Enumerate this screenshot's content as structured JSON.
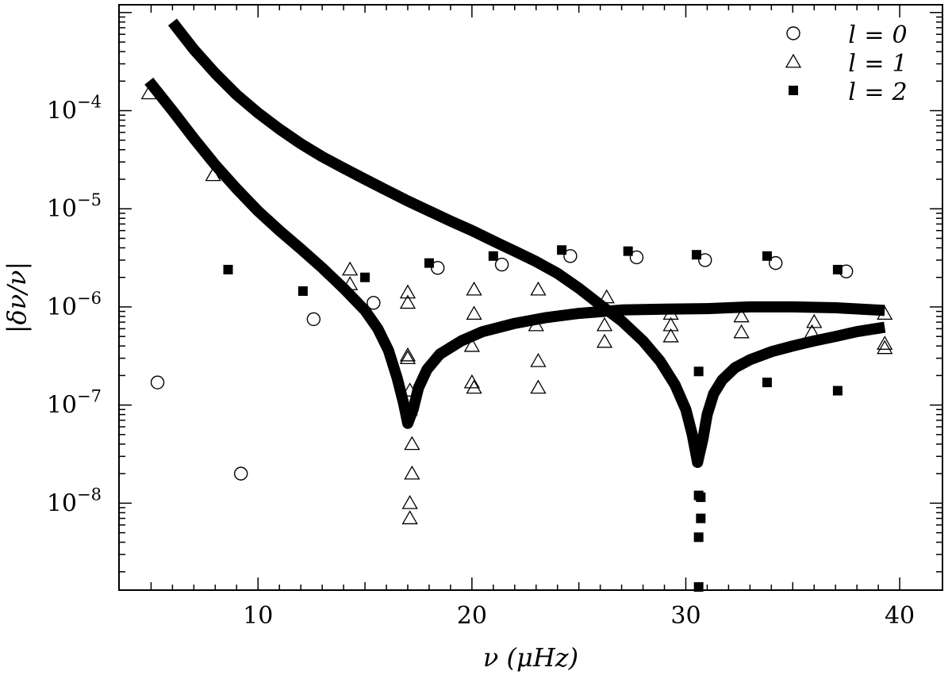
{
  "chart_data": {
    "type": "scatter",
    "title": "",
    "xlabel": "ν  (μHz)",
    "ylabel": "|δν/ν|",
    "y_scale": "log",
    "xlim": [
      3.5,
      42
    ],
    "ylim": [
      1.3e-09,
      0.0012
    ],
    "x_ticks": [
      10,
      20,
      30,
      40
    ],
    "x_tick_labels": [
      "10",
      "20",
      "30",
      "40"
    ],
    "y_ticks": [
      1e-08,
      1e-07,
      1e-06,
      1e-05,
      0.0001
    ],
    "y_tick_labels": [
      {
        "base": "10",
        "exp": "−8"
      },
      {
        "base": "10",
        "exp": "−7"
      },
      {
        "base": "10",
        "exp": "−6"
      },
      {
        "base": "10",
        "exp": "−5"
      },
      {
        "base": "10",
        "exp": "−4"
      }
    ],
    "grid": false,
    "legend_position": "top-right",
    "series": [
      {
        "name": "l = 0",
        "legend_label": {
          "var": "l",
          "eq": "=",
          "val": "0"
        },
        "marker": "open-circle",
        "points": [
          {
            "x": 5.3,
            "y": 1.7e-07
          },
          {
            "x": 9.2,
            "y": 2e-08
          },
          {
            "x": 12.6,
            "y": 7.5e-07
          },
          {
            "x": 15.4,
            "y": 1.1e-06
          },
          {
            "x": 18.4,
            "y": 2.5e-06
          },
          {
            "x": 21.4,
            "y": 2.7e-06
          },
          {
            "x": 24.6,
            "y": 3.3e-06
          },
          {
            "x": 27.7,
            "y": 3.2e-06
          },
          {
            "x": 30.9,
            "y": 3e-06
          },
          {
            "x": 34.2,
            "y": 2.8e-06
          },
          {
            "x": 37.5,
            "y": 2.3e-06
          }
        ]
      },
      {
        "name": "l = 1",
        "legend_label": {
          "var": "l",
          "eq": "=",
          "val": "1"
        },
        "marker": "open-triangle",
        "points": [
          {
            "x": 4.9,
            "y": 0.00015
          },
          {
            "x": 7.9,
            "y": 2.2e-05
          },
          {
            "x": 14.3,
            "y": 2.4e-06
          },
          {
            "x": 14.3,
            "y": 1.7e-06
          },
          {
            "x": 17.0,
            "y": 1.4e-06
          },
          {
            "x": 17.0,
            "y": 1.1e-06
          },
          {
            "x": 17.0,
            "y": 3.2e-07
          },
          {
            "x": 17.0,
            "y": 3e-07
          },
          {
            "x": 17.1,
            "y": 1.4e-07
          },
          {
            "x": 17.1,
            "y": 9e-08
          },
          {
            "x": 17.2,
            "y": 4e-08
          },
          {
            "x": 17.2,
            "y": 2e-08
          },
          {
            "x": 17.1,
            "y": 1e-08
          },
          {
            "x": 17.1,
            "y": 7e-09
          },
          {
            "x": 20.1,
            "y": 1.5e-06
          },
          {
            "x": 20.1,
            "y": 8.5e-07
          },
          {
            "x": 20.0,
            "y": 4e-07
          },
          {
            "x": 20.0,
            "y": 1.7e-07
          },
          {
            "x": 20.1,
            "y": 1.5e-07
          },
          {
            "x": 23.1,
            "y": 1.5e-06
          },
          {
            "x": 23.0,
            "y": 6.5e-07
          },
          {
            "x": 23.1,
            "y": 2.8e-07
          },
          {
            "x": 23.1,
            "y": 1.5e-07
          },
          {
            "x": 26.3,
            "y": 1.25e-06
          },
          {
            "x": 26.2,
            "y": 6.5e-07
          },
          {
            "x": 26.2,
            "y": 4.4e-07
          },
          {
            "x": 29.3,
            "y": 8.5e-07
          },
          {
            "x": 29.3,
            "y": 6.5e-07
          },
          {
            "x": 29.3,
            "y": 5e-07
          },
          {
            "x": 32.6,
            "y": 8e-07
          },
          {
            "x": 32.6,
            "y": 5.5e-07
          },
          {
            "x": 36.0,
            "y": 7e-07
          },
          {
            "x": 35.9,
            "y": 5.5e-07
          },
          {
            "x": 39.3,
            "y": 8.5e-07
          },
          {
            "x": 39.3,
            "y": 4.2e-07
          },
          {
            "x": 39.3,
            "y": 3.8e-07
          }
        ]
      },
      {
        "name": "l = 2",
        "legend_label": {
          "var": "l",
          "eq": "=",
          "val": "2"
        },
        "marker": "filled-square",
        "points": [
          {
            "x": 8.6,
            "y": 2.4e-06
          },
          {
            "x": 12.1,
            "y": 1.45e-06
          },
          {
            "x": 15.0,
            "y": 2e-06
          },
          {
            "x": 18.0,
            "y": 2.8e-06
          },
          {
            "x": 21.0,
            "y": 3.3e-06
          },
          {
            "x": 24.2,
            "y": 3.8e-06
          },
          {
            "x": 27.3,
            "y": 3.7e-06
          },
          {
            "x": 30.5,
            "y": 3.4e-06
          },
          {
            "x": 30.6,
            "y": 2.2e-07
          },
          {
            "x": 30.6,
            "y": 1.2e-08
          },
          {
            "x": 30.7,
            "y": 1.15e-08
          },
          {
            "x": 30.7,
            "y": 7e-09
          },
          {
            "x": 30.6,
            "y": 4.5e-09
          },
          {
            "x": 30.6,
            "y": 1.4e-09
          },
          {
            "x": 33.8,
            "y": 3.3e-06
          },
          {
            "x": 33.8,
            "y": 1.7e-07
          },
          {
            "x": 37.1,
            "y": 2.4e-06
          },
          {
            "x": 37.1,
            "y": 1.4e-07
          }
        ]
      }
    ],
    "curves": [
      {
        "style": "thick-black-band",
        "points": [
          {
            "x": 6.0,
            "y": 0.0008
          },
          {
            "x": 7,
            "y": 0.00042
          },
          {
            "x": 8,
            "y": 0.00024
          },
          {
            "x": 9,
            "y": 0.000145
          },
          {
            "x": 10,
            "y": 9.5e-05
          },
          {
            "x": 11,
            "y": 6.5e-05
          },
          {
            "x": 12,
            "y": 4.6e-05
          },
          {
            "x": 13,
            "y": 3.4e-05
          },
          {
            "x": 14,
            "y": 2.6e-05
          },
          {
            "x": 15,
            "y": 2e-05
          },
          {
            "x": 16,
            "y": 1.55e-05
          },
          {
            "x": 17,
            "y": 1.2e-05
          },
          {
            "x": 18,
            "y": 9.5e-06
          },
          {
            "x": 19,
            "y": 7.5e-06
          },
          {
            "x": 20,
            "y": 6e-06
          },
          {
            "x": 21,
            "y": 4.7e-06
          },
          {
            "x": 22,
            "y": 3.7e-06
          },
          {
            "x": 23,
            "y": 2.9e-06
          },
          {
            "x": 24,
            "y": 2.2e-06
          },
          {
            "x": 25,
            "y": 1.55e-06
          },
          {
            "x": 26,
            "y": 1.05e-06
          },
          {
            "x": 27,
            "y": 7.2e-07
          },
          {
            "x": 28,
            "y": 4.5e-07
          },
          {
            "x": 28.8,
            "y": 2.8e-07
          },
          {
            "x": 29.5,
            "y": 1.6e-07
          },
          {
            "x": 30.0,
            "y": 9e-08
          },
          {
            "x": 30.3,
            "y": 5e-08
          },
          {
            "x": 30.55,
            "y": 2.6e-08
          },
          {
            "x": 30.8,
            "y": 4.5e-08
          },
          {
            "x": 31.0,
            "y": 8e-08
          },
          {
            "x": 31.3,
            "y": 1.3e-07
          },
          {
            "x": 31.7,
            "y": 1.8e-07
          },
          {
            "x": 32.3,
            "y": 2.4e-07
          },
          {
            "x": 33,
            "y": 2.9e-07
          },
          {
            "x": 34,
            "y": 3.5e-07
          },
          {
            "x": 35,
            "y": 4e-07
          },
          {
            "x": 36,
            "y": 4.5e-07
          },
          {
            "x": 37,
            "y": 5e-07
          },
          {
            "x": 38,
            "y": 5.6e-07
          },
          {
            "x": 39.3,
            "y": 6.2e-07
          }
        ]
      },
      {
        "style": "thick-black-band",
        "points": [
          {
            "x": 4.9,
            "y": 0.0002
          },
          {
            "x": 6,
            "y": 0.0001
          },
          {
            "x": 7,
            "y": 5.2e-05
          },
          {
            "x": 8,
            "y": 2.8e-05
          },
          {
            "x": 9,
            "y": 1.6e-05
          },
          {
            "x": 10,
            "y": 9.5e-06
          },
          {
            "x": 11,
            "y": 6e-06
          },
          {
            "x": 12,
            "y": 3.9e-06
          },
          {
            "x": 13,
            "y": 2.5e-06
          },
          {
            "x": 14,
            "y": 1.55e-06
          },
          {
            "x": 15,
            "y": 9.2e-07
          },
          {
            "x": 15.6,
            "y": 6e-07
          },
          {
            "x": 16.1,
            "y": 3.6e-07
          },
          {
            "x": 16.5,
            "y": 1.9e-07
          },
          {
            "x": 16.8,
            "y": 1.05e-07
          },
          {
            "x": 17.0,
            "y": 6.5e-08
          },
          {
            "x": 17.25,
            "y": 9e-08
          },
          {
            "x": 17.5,
            "y": 1.5e-07
          },
          {
            "x": 17.9,
            "y": 2.3e-07
          },
          {
            "x": 18.5,
            "y": 3.3e-07
          },
          {
            "x": 19.5,
            "y": 4.5e-07
          },
          {
            "x": 20.5,
            "y": 5.6e-07
          },
          {
            "x": 22,
            "y": 6.8e-07
          },
          {
            "x": 23.5,
            "y": 7.8e-07
          },
          {
            "x": 25,
            "y": 8.6e-07
          },
          {
            "x": 27,
            "y": 9.3e-07
          },
          {
            "x": 29,
            "y": 9.5e-07
          },
          {
            "x": 31,
            "y": 9.6e-07
          },
          {
            "x": 33,
            "y": 1e-06
          },
          {
            "x": 35,
            "y": 1e-06
          },
          {
            "x": 37,
            "y": 9.8e-07
          },
          {
            "x": 39.3,
            "y": 9.2e-07
          }
        ]
      }
    ]
  }
}
